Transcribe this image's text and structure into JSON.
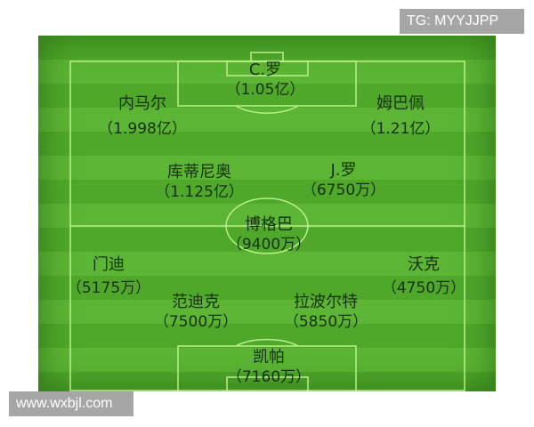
{
  "players": [
    {
      "name": "C.罗",
      "value": "（1.05亿）"
    },
    {
      "name": "内马尔",
      "value": "（1.998亿）"
    },
    {
      "name": "姆巴佩",
      "value": "（1.21亿）"
    },
    {
      "name": "库蒂尼奥",
      "value": "（1.125亿）"
    },
    {
      "name": "J.罗",
      "value": "（6750万）"
    },
    {
      "name": "博格巴",
      "value": "（9400万）"
    },
    {
      "name": "门迪",
      "value": "（5175万）"
    },
    {
      "name": "沃克",
      "value": "（4750万）"
    },
    {
      "name": "范迪克",
      "value": "（7500万）"
    },
    {
      "name": "拉波尔特",
      "value": "（5850万）"
    },
    {
      "name": "凯帕",
      "value": "（7160万）"
    }
  ],
  "watermarks": {
    "top_right": "TG: MYYJJPP",
    "bottom_left": "www.wxbjl.com"
  },
  "colors": {
    "grass_dark": "#4fa82a",
    "grass_light": "#5cb534",
    "lines": "#b8f08a",
    "text": "#173010"
  }
}
